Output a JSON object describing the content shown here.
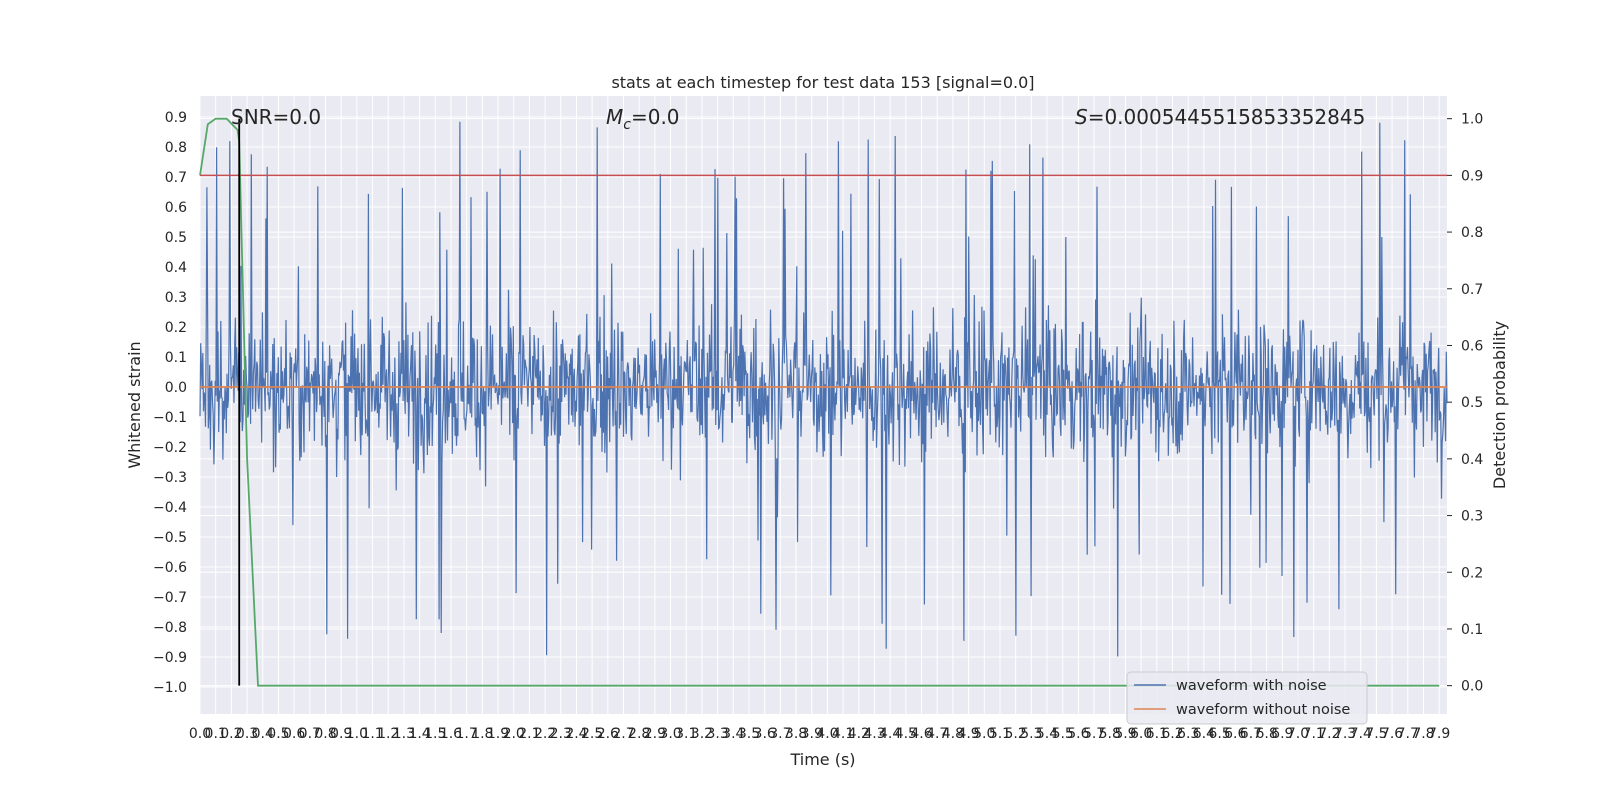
{
  "chart_data": {
    "type": "line",
    "title": "stats at each timestep for test data 153 [signal=0.0]",
    "xlabel": "Time (s)",
    "ylabel": "Whitened strain",
    "y2label": "Detection probability",
    "xlim": [
      0.0,
      7.95
    ],
    "ylim": [
      -1.09,
      0.97
    ],
    "y2lim": [
      -0.05,
      1.04
    ],
    "x_ticks": [
      "0.0",
      "0.1",
      "0.2",
      "0.3",
      "0.4",
      "0.5",
      "0.6",
      "0.7",
      "0.8",
      "0.9",
      "1.0",
      "1.1",
      "1.2",
      "1.3",
      "1.4",
      "1.5",
      "1.6",
      "1.7",
      "1.8",
      "1.9",
      "2.0",
      "2.1",
      "2.2",
      "2.3",
      "2.4",
      "2.5",
      "2.6",
      "2.7",
      "2.8",
      "2.9",
      "3.0",
      "3.1",
      "3.2",
      "3.3",
      "3.4",
      "3.5",
      "3.6",
      "3.7",
      "3.8",
      "3.9",
      "4.0",
      "4.1",
      "4.2",
      "4.3",
      "4.4",
      "4.5",
      "4.6",
      "4.7",
      "4.8",
      "4.9",
      "5.0",
      "5.1",
      "5.2",
      "5.3",
      "5.4",
      "5.5",
      "5.6",
      "5.7",
      "5.8",
      "5.9",
      "6.0",
      "6.1",
      "6.2",
      "6.3",
      "6.4",
      "6.5",
      "6.6",
      "6.7",
      "6.8",
      "6.9",
      "7.0",
      "7.1",
      "7.2",
      "7.3",
      "7.4",
      "7.5",
      "7.6",
      "7.7",
      "7.8",
      "7.9"
    ],
    "y_ticks": [
      "0.9",
      "0.8",
      "0.7",
      "0.6",
      "0.5",
      "0.4",
      "0.3",
      "0.2",
      "0.1",
      "0.0",
      "−0.1",
      "−0.2",
      "−0.3",
      "−0.4",
      "−0.5",
      "−0.6",
      "−0.7",
      "−0.8",
      "−0.9",
      "−1.0"
    ],
    "y2_ticks": [
      "1.0",
      "0.9",
      "0.8",
      "0.7",
      "0.6",
      "0.5",
      "0.4",
      "0.3",
      "0.2",
      "0.1",
      "0.0"
    ],
    "annotations": {
      "snr": "SNR=0.0",
      "mc_symbol": "M",
      "mc_sub": "c",
      "mc_value": "=0.0",
      "s_symbol": "S",
      "s_value": "=0.0005445515853352845"
    },
    "series": [
      {
        "name": "waveform with noise",
        "axis": "left",
        "color": "#4c72b0",
        "amplitude_typical": 0.3,
        "amplitude_peak": 0.9
      },
      {
        "name": "waveform without noise",
        "axis": "left",
        "color": "#dd8452",
        "values": [
          [
            0.0,
            0.0
          ],
          [
            7.95,
            0.0
          ]
        ]
      },
      {
        "axis": "right",
        "color": "#55a868",
        "points": [
          [
            0.0,
            0.9
          ],
          [
            0.05,
            0.99
          ],
          [
            0.1,
            1.0
          ],
          [
            0.17,
            1.0
          ],
          [
            0.24,
            0.98
          ],
          [
            0.25,
            0.96
          ],
          [
            0.3,
            0.4
          ],
          [
            0.37,
            0.0
          ],
          [
            7.9,
            0.0
          ]
        ]
      }
    ],
    "threshold": {
      "axis": "right",
      "value": 0.9,
      "color": "#c44e52"
    },
    "vertical_marker": {
      "x": 0.25,
      "color": "#000000"
    },
    "grid": true,
    "legend_position": "lower right"
  }
}
